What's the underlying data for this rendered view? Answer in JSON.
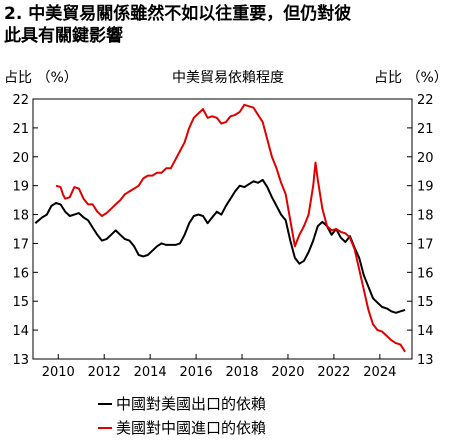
{
  "header": {
    "line1": "2. 中美貿易關係雖然不如以往重要，但仍對彼",
    "line2": "此具有關鍵影響"
  },
  "colors": {
    "china_exports": "#000000",
    "us_imports": "#e00000"
  },
  "chart_data": {
    "type": "line",
    "title": "中美貿易依賴程度",
    "ylabel_left": "占比 （%）",
    "ylabel_right": "占比 （%）",
    "xlim": [
      2008.9,
      2025.4
    ],
    "ylim": [
      13,
      22
    ],
    "yticks": [
      "22",
      "21",
      "20",
      "19",
      "18",
      "17",
      "16",
      "15",
      "14",
      "13"
    ],
    "xticks": [
      "2010",
      "2012",
      "2014",
      "2016",
      "2018",
      "2020",
      "2022",
      "2024"
    ],
    "grid": false,
    "legend_position": "bottom-left",
    "series": [
      {
        "name": "中國對美國出口的依賴",
        "color": "#000000",
        "points": [
          [
            2009.0,
            17.7
          ],
          [
            2009.3,
            17.9
          ],
          [
            2009.5,
            18.0
          ],
          [
            2009.7,
            18.3
          ],
          [
            2009.9,
            18.4
          ],
          [
            2010.1,
            18.35
          ],
          [
            2010.3,
            18.1
          ],
          [
            2010.5,
            17.95
          ],
          [
            2010.7,
            18.0
          ],
          [
            2010.9,
            18.05
          ],
          [
            2011.1,
            17.9
          ],
          [
            2011.3,
            17.8
          ],
          [
            2011.5,
            17.55
          ],
          [
            2011.7,
            17.3
          ],
          [
            2011.9,
            17.1
          ],
          [
            2012.1,
            17.15
          ],
          [
            2012.3,
            17.3
          ],
          [
            2012.5,
            17.45
          ],
          [
            2012.7,
            17.3
          ],
          [
            2012.9,
            17.15
          ],
          [
            2013.1,
            17.1
          ],
          [
            2013.3,
            16.9
          ],
          [
            2013.5,
            16.6
          ],
          [
            2013.7,
            16.55
          ],
          [
            2013.9,
            16.6
          ],
          [
            2014.1,
            16.75
          ],
          [
            2014.3,
            16.9
          ],
          [
            2014.5,
            17.0
          ],
          [
            2014.7,
            16.95
          ],
          [
            2014.9,
            16.95
          ],
          [
            2015.1,
            16.95
          ],
          [
            2015.3,
            17.0
          ],
          [
            2015.5,
            17.3
          ],
          [
            2015.7,
            17.7
          ],
          [
            2015.9,
            17.95
          ],
          [
            2016.1,
            18.0
          ],
          [
            2016.3,
            17.95
          ],
          [
            2016.5,
            17.7
          ],
          [
            2016.7,
            17.9
          ],
          [
            2016.9,
            18.1
          ],
          [
            2017.1,
            18.0
          ],
          [
            2017.3,
            18.3
          ],
          [
            2017.5,
            18.55
          ],
          [
            2017.7,
            18.8
          ],
          [
            2017.9,
            19.0
          ],
          [
            2018.1,
            18.95
          ],
          [
            2018.3,
            19.05
          ],
          [
            2018.5,
            19.15
          ],
          [
            2018.7,
            19.1
          ],
          [
            2018.9,
            19.2
          ],
          [
            2019.1,
            18.95
          ],
          [
            2019.3,
            18.6
          ],
          [
            2019.5,
            18.3
          ],
          [
            2019.7,
            18.0
          ],
          [
            2019.9,
            17.8
          ],
          [
            2020.1,
            17.1
          ],
          [
            2020.3,
            16.5
          ],
          [
            2020.5,
            16.3
          ],
          [
            2020.7,
            16.4
          ],
          [
            2020.9,
            16.7
          ],
          [
            2021.1,
            17.1
          ],
          [
            2021.3,
            17.6
          ],
          [
            2021.5,
            17.75
          ],
          [
            2021.7,
            17.6
          ],
          [
            2021.9,
            17.3
          ],
          [
            2022.1,
            17.5
          ],
          [
            2022.3,
            17.2
          ],
          [
            2022.5,
            17.05
          ],
          [
            2022.7,
            17.25
          ],
          [
            2022.9,
            16.85
          ],
          [
            2023.1,
            16.5
          ],
          [
            2023.3,
            15.9
          ],
          [
            2023.5,
            15.5
          ],
          [
            2023.7,
            15.1
          ],
          [
            2023.9,
            14.95
          ],
          [
            2024.1,
            14.8
          ],
          [
            2024.3,
            14.75
          ],
          [
            2024.5,
            14.65
          ],
          [
            2024.7,
            14.6
          ],
          [
            2024.9,
            14.65
          ],
          [
            2025.1,
            14.7
          ]
        ]
      },
      {
        "name": "美國對中國進口的依賴",
        "color": "#e00000",
        "points": [
          [
            2009.9,
            19.0
          ],
          [
            2010.1,
            18.95
          ],
          [
            2010.2,
            18.7
          ],
          [
            2010.3,
            18.55
          ],
          [
            2010.5,
            18.6
          ],
          [
            2010.7,
            18.95
          ],
          [
            2010.9,
            18.9
          ],
          [
            2011.1,
            18.55
          ],
          [
            2011.3,
            18.35
          ],
          [
            2011.5,
            18.35
          ],
          [
            2011.7,
            18.1
          ],
          [
            2011.9,
            17.95
          ],
          [
            2012.1,
            18.05
          ],
          [
            2012.3,
            18.2
          ],
          [
            2012.5,
            18.35
          ],
          [
            2012.7,
            18.5
          ],
          [
            2012.9,
            18.7
          ],
          [
            2013.1,
            18.8
          ],
          [
            2013.3,
            18.9
          ],
          [
            2013.5,
            19.0
          ],
          [
            2013.7,
            19.25
          ],
          [
            2013.9,
            19.35
          ],
          [
            2014.1,
            19.35
          ],
          [
            2014.3,
            19.45
          ],
          [
            2014.5,
            19.45
          ],
          [
            2014.7,
            19.6
          ],
          [
            2014.9,
            19.6
          ],
          [
            2015.1,
            19.9
          ],
          [
            2015.3,
            20.2
          ],
          [
            2015.5,
            20.5
          ],
          [
            2015.7,
            21.0
          ],
          [
            2015.9,
            21.35
          ],
          [
            2016.1,
            21.5
          ],
          [
            2016.3,
            21.65
          ],
          [
            2016.5,
            21.35
          ],
          [
            2016.7,
            21.4
          ],
          [
            2016.9,
            21.35
          ],
          [
            2017.1,
            21.15
          ],
          [
            2017.3,
            21.2
          ],
          [
            2017.5,
            21.4
          ],
          [
            2017.7,
            21.45
          ],
          [
            2017.9,
            21.55
          ],
          [
            2018.1,
            21.8
          ],
          [
            2018.3,
            21.75
          ],
          [
            2018.5,
            21.7
          ],
          [
            2018.7,
            21.45
          ],
          [
            2018.9,
            21.2
          ],
          [
            2019.1,
            20.6
          ],
          [
            2019.3,
            20.0
          ],
          [
            2019.5,
            19.6
          ],
          [
            2019.7,
            19.1
          ],
          [
            2019.9,
            18.7
          ],
          [
            2020.1,
            17.8
          ],
          [
            2020.3,
            16.9
          ],
          [
            2020.5,
            17.3
          ],
          [
            2020.7,
            17.6
          ],
          [
            2020.9,
            18.0
          ],
          [
            2021.1,
            19.0
          ],
          [
            2021.2,
            19.8
          ],
          [
            2021.3,
            19.2
          ],
          [
            2021.5,
            18.2
          ],
          [
            2021.7,
            17.6
          ],
          [
            2021.9,
            17.45
          ],
          [
            2022.1,
            17.5
          ],
          [
            2022.3,
            17.4
          ],
          [
            2022.5,
            17.35
          ],
          [
            2022.7,
            17.2
          ],
          [
            2022.9,
            16.8
          ],
          [
            2023.1,
            16.1
          ],
          [
            2023.3,
            15.4
          ],
          [
            2023.5,
            14.7
          ],
          [
            2023.7,
            14.2
          ],
          [
            2023.9,
            14.0
          ],
          [
            2024.1,
            13.95
          ],
          [
            2024.3,
            13.8
          ],
          [
            2024.5,
            13.65
          ],
          [
            2024.7,
            13.55
          ],
          [
            2024.9,
            13.5
          ],
          [
            2025.1,
            13.25
          ]
        ]
      }
    ]
  }
}
